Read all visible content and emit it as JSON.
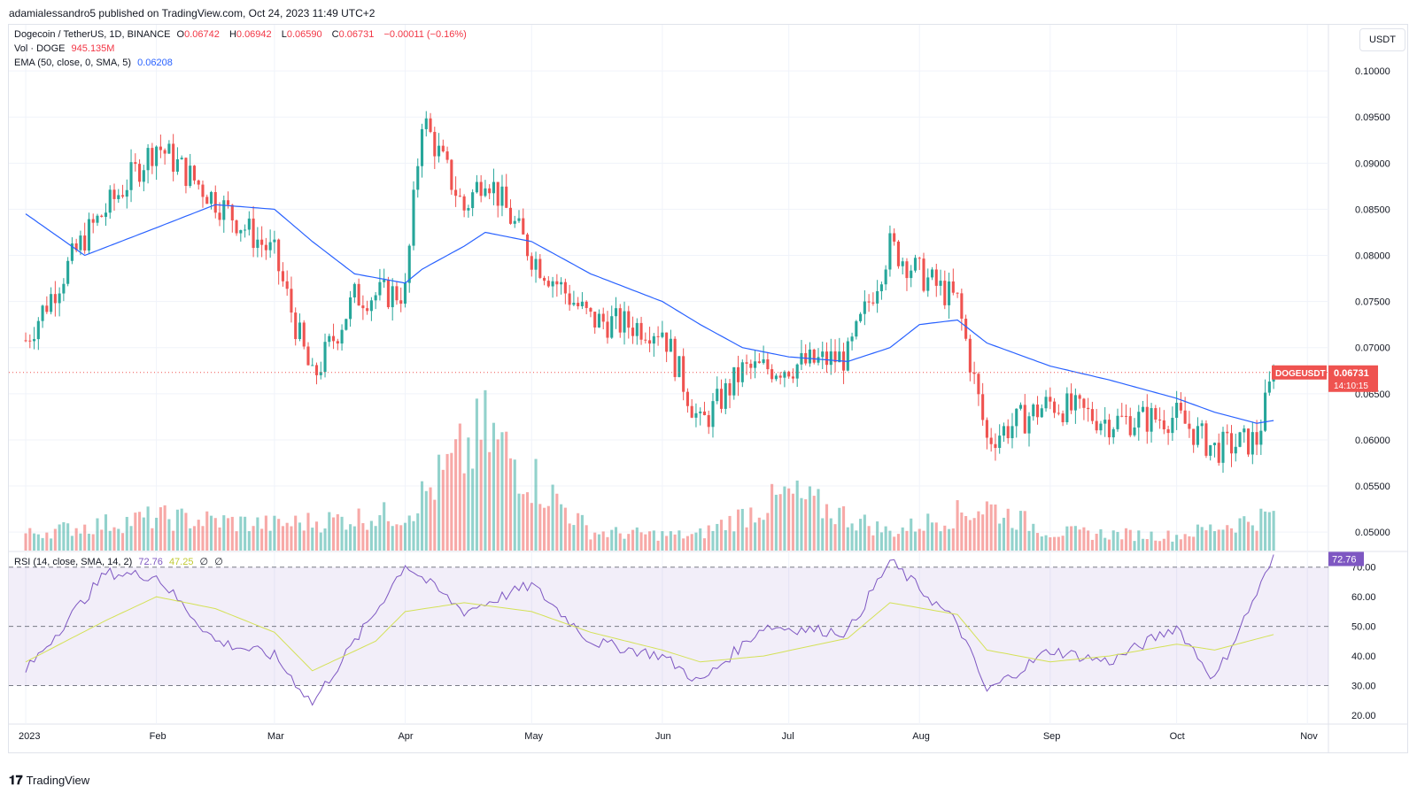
{
  "header": {
    "published": "adamialessandro5 published on TradingView.com, Oct 24, 2023 11:49 UTC+2"
  },
  "legend": {
    "symbol": "Dogecoin / TetherUS, 1D, BINANCE",
    "o_label": "O",
    "o_val": "0.06742",
    "h_label": "H",
    "h_val": "0.06942",
    "l_label": "L",
    "l_val": "0.06590",
    "c_label": "C",
    "c_val": "0.06731",
    "change": "−0.00011 (−0.16%)",
    "vol_label": "Vol · DOGE",
    "vol_val": "945.135M",
    "ema_label": "EMA (50, close, 0, SMA, 5)",
    "ema_val": "0.06208",
    "rsi_label": "RSI (14, close, SMA, 14, 2)",
    "rsi_val": "72.76",
    "rsi_sma_val": "47.25",
    "rsi_extra1": "∅",
    "rsi_extra2": "∅"
  },
  "currency": "USDT",
  "price_tag": {
    "symbol": "DOGEUSDT",
    "price": "0.06731",
    "countdown": "14:10:15"
  },
  "footer": {
    "brand": "TradingView",
    "logo": "TV-logo-icon"
  },
  "colors": {
    "up": "#26a69a",
    "down": "#ef5350",
    "ema": "#2962ff",
    "rsi": "#7e57c2",
    "rsi_ma": "#d4e157",
    "rsi_band": "#7e57c2"
  },
  "chart_data": [
    {
      "type": "candlestick",
      "title": "Dogecoin / TetherUS, 1D, BINANCE",
      "y_axis_ticks": [
        "0.10000",
        "0.09500",
        "0.09000",
        "0.08500",
        "0.08000",
        "0.07500",
        "0.07000",
        "0.06500",
        "0.06000",
        "0.05500",
        "0.05000"
      ],
      "ylim": [
        0.048,
        0.105
      ],
      "x_axis_ticks": [
        "2023",
        "Feb",
        "Mar",
        "Apr",
        "May",
        "Jun",
        "Jul",
        "Aug",
        "Sep",
        "Oct",
        "Nov"
      ],
      "x": [
        "2023-01-01",
        "2023-01-15",
        "2023-02-01",
        "2023-02-15",
        "2023-03-01",
        "2023-03-10",
        "2023-03-20",
        "2023-04-01",
        "2023-04-05",
        "2023-04-15",
        "2023-04-20",
        "2023-05-01",
        "2023-05-15",
        "2023-06-01",
        "2023-06-10",
        "2023-06-20",
        "2023-07-01",
        "2023-07-15",
        "2023-07-25",
        "2023-08-01",
        "2023-08-10",
        "2023-08-17",
        "2023-09-01",
        "2023-09-15",
        "2023-10-01",
        "2023-10-10",
        "2023-10-20",
        "2023-10-24"
      ],
      "close": [
        0.0708,
        0.082,
        0.092,
        0.086,
        0.08,
        0.0665,
        0.0755,
        0.076,
        0.095,
        0.085,
        0.089,
        0.08,
        0.073,
        0.072,
        0.0615,
        0.0675,
        0.068,
        0.069,
        0.081,
        0.078,
        0.075,
        0.06,
        0.064,
        0.062,
        0.0625,
        0.059,
        0.06,
        0.0673
      ],
      "ema": [
        0.0845,
        0.08,
        0.083,
        0.0855,
        0.085,
        0.0815,
        0.078,
        0.077,
        0.0785,
        0.081,
        0.0825,
        0.0815,
        0.078,
        0.075,
        0.0725,
        0.07,
        0.069,
        0.0685,
        0.07,
        0.0725,
        0.073,
        0.0705,
        0.068,
        0.0665,
        0.0645,
        0.063,
        0.0618,
        0.0621
      ],
      "last_price": 0.06731
    },
    {
      "type": "bar",
      "title": "Vol · DOGE",
      "x": [
        "2023-01-01",
        "2023-02-01",
        "2023-03-01",
        "2023-04-01",
        "2023-04-20",
        "2023-05-15",
        "2023-06-09",
        "2023-07-01",
        "2023-07-25",
        "2023-08-17",
        "2023-09-01",
        "2023-10-01",
        "2023-10-23"
      ],
      "values": [
        450,
        900,
        700,
        1000,
        3200,
        500,
        400,
        1500,
        500,
        1200,
        500,
        400,
        945
      ]
    },
    {
      "type": "line",
      "title": "RSI (14, close, SMA, 14, 2)",
      "y_axis_ticks": [
        "70.00",
        "60.00",
        "50.00",
        "40.00",
        "30.00",
        "20.00"
      ],
      "ylim": [
        17,
        75
      ],
      "band": [
        30,
        70
      ],
      "x": [
        "2023-01-01",
        "2023-01-20",
        "2023-02-01",
        "2023-02-15",
        "2023-03-01",
        "2023-03-10",
        "2023-03-25",
        "2023-04-01",
        "2023-04-15",
        "2023-05-01",
        "2023-05-15",
        "2023-06-01",
        "2023-06-10",
        "2023-06-25",
        "2023-07-15",
        "2023-07-25",
        "2023-08-10",
        "2023-08-17",
        "2023-09-01",
        "2023-09-15",
        "2023-10-01",
        "2023-10-10",
        "2023-10-24"
      ],
      "series": [
        {
          "name": "RSI",
          "values": [
            35,
            68,
            67,
            45,
            40,
            24,
            55,
            71,
            55,
            64,
            45,
            40,
            31,
            50,
            48,
            72,
            51,
            28,
            42,
            38,
            50,
            32,
            72.76
          ]
        },
        {
          "name": "RSI-based MA",
          "values": [
            38,
            52,
            60,
            56,
            48,
            35,
            45,
            55,
            58,
            55,
            48,
            42,
            38,
            40,
            46,
            58,
            54,
            42,
            38,
            40,
            44,
            42,
            47.25
          ]
        }
      ]
    }
  ]
}
